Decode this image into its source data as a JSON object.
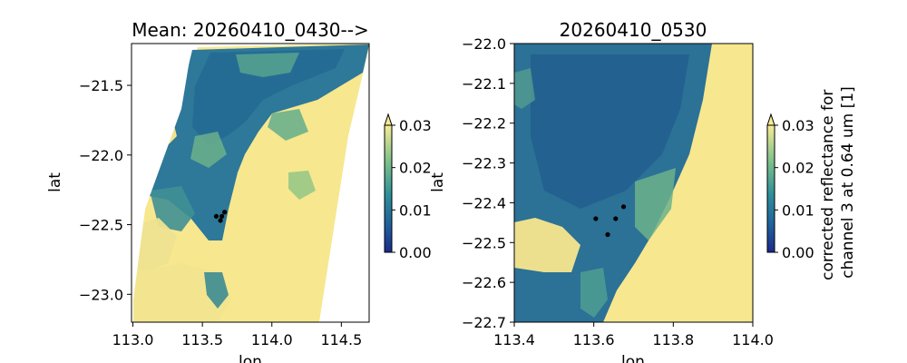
{
  "chart_data": [
    {
      "type": "heatmap",
      "title": "Mean: 20260410_0430-->",
      "xlabel": "lon",
      "ylabel": "lat",
      "xlim": [
        112.99,
        114.7
      ],
      "ylim": [
        -23.2,
        -21.2
      ],
      "xticks": [
        113.0,
        113.5,
        114.0,
        114.5
      ],
      "xtick_labels": [
        "113.0",
        "113.5",
        "114.0",
        "114.5"
      ],
      "yticks": [
        -21.5,
        -22.0,
        -22.5,
        -23.0
      ],
      "ytick_labels": [
        "−21.5",
        "−22.0",
        "−22.5",
        "−23.0"
      ],
      "points": [
        [
          113.6,
          -22.44
        ],
        [
          113.64,
          -22.44
        ],
        [
          113.66,
          -22.41
        ],
        [
          113.63,
          -22.47
        ]
      ],
      "colorbar": {
        "range": [
          0.0,
          0.03
        ],
        "ticks": [
          0.0,
          0.01,
          0.02,
          0.03
        ],
        "tick_labels": [
          "0.00",
          "0.01",
          "0.02",
          "0.03"
        ],
        "extend": "max"
      }
    },
    {
      "type": "heatmap",
      "title": "20260410_0530",
      "xlabel": "lon",
      "ylabel": "lat",
      "xlim": [
        113.4,
        114.0
      ],
      "ylim": [
        -22.7,
        -22.0
      ],
      "xticks": [
        113.4,
        113.6,
        113.8,
        114.0
      ],
      "xtick_labels": [
        "113.4",
        "113.6",
        "113.8",
        "114.0"
      ],
      "yticks": [
        -22.0,
        -22.1,
        -22.2,
        -22.3,
        -22.4,
        -22.5,
        -22.6,
        -22.7
      ],
      "ytick_labels": [
        "−22.0",
        "−22.1",
        "−22.2",
        "−22.3",
        "−22.4",
        "−22.5",
        "−22.6",
        "−22.7"
      ],
      "points": [
        [
          113.605,
          -22.44
        ],
        [
          113.655,
          -22.44
        ],
        [
          113.675,
          -22.41
        ],
        [
          113.635,
          -22.48
        ]
      ],
      "colorbar": {
        "label": "corrected reflectance for channel 3 at 0.64 um [1]",
        "range": [
          0.0,
          0.03
        ],
        "ticks": [
          0.0,
          0.01,
          0.02,
          0.03
        ],
        "tick_labels": [
          "0.00",
          "0.01",
          "0.02",
          "0.03"
        ],
        "extend": "max"
      }
    }
  ],
  "colors": {
    "land": "#f7e78e",
    "water": "#2a6f9a",
    "colormap_low": "#1c2a8a",
    "colormap_high": "#f5eb96",
    "marker": "#000000"
  }
}
